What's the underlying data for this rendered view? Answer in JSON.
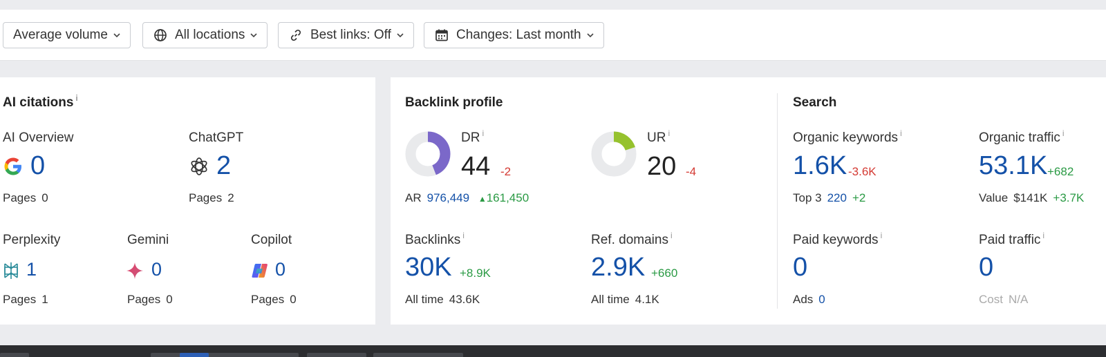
{
  "filters": [
    {
      "label": "Average volume",
      "icon": "none"
    },
    {
      "label": "All locations",
      "icon": "globe-icon"
    },
    {
      "label": "Best links: Off",
      "icon": "link-icon"
    },
    {
      "label": "Changes: Last month",
      "icon": "calendar-icon"
    }
  ],
  "ai_citations": {
    "title": "AI citations",
    "info": "i",
    "pages_label": "Pages",
    "items": [
      {
        "name": "AI Overview",
        "value": "0",
        "pages": "0",
        "icon": "google-icon"
      },
      {
        "name": "ChatGPT",
        "value": "2",
        "pages": "2",
        "icon": "chatgpt-icon"
      },
      {
        "name": "Perplexity",
        "value": "1",
        "pages": "1",
        "icon": "perplexity-icon"
      },
      {
        "name": "Gemini",
        "value": "0",
        "pages": "0",
        "icon": "gemini-icon"
      },
      {
        "name": "Copilot",
        "value": "0",
        "pages": "0",
        "icon": "copilot-icon"
      }
    ]
  },
  "backlink_profile": {
    "title": "Backlink profile",
    "dr": {
      "label": "DR",
      "value": "44",
      "change": "-2",
      "fill": 0.44,
      "color": "#7b68c9"
    },
    "ur": {
      "label": "UR",
      "value": "20",
      "change": "-4",
      "fill": 0.2,
      "color": "#96c22e"
    },
    "ar": {
      "label": "AR",
      "value": "976,449",
      "change": "161,450"
    },
    "backlinks": {
      "label": "Backlinks",
      "value": "30K",
      "change": "+8.9K",
      "alltime_label": "All time",
      "alltime": "43.6K"
    },
    "ref_domains": {
      "label": "Ref. domains",
      "value": "2.9K",
      "change": "+660",
      "alltime_label": "All time",
      "alltime": "4.1K"
    }
  },
  "search": {
    "title": "Search",
    "organic_keywords": {
      "label": "Organic keywords",
      "value": "1.6K",
      "change": "-3.6K",
      "top3_label": "Top 3",
      "top3": "220",
      "top3_change": "+2"
    },
    "organic_traffic": {
      "label": "Organic traffic",
      "value": "53.1K",
      "change": "+682",
      "value_label": "Value",
      "worth": "$141K",
      "worth_change": "+3.7K"
    },
    "paid_keywords": {
      "label": "Paid keywords",
      "value": "0",
      "ads_label": "Ads",
      "ads": "0"
    },
    "paid_traffic": {
      "label": "Paid traffic",
      "value": "0",
      "cost_label": "Cost",
      "cost": "N/A"
    }
  },
  "colors": {
    "accent": "#1451a8",
    "negative": "#d43a33",
    "positive": "#2a9a44",
    "donut_track": "#e9eaec"
  }
}
